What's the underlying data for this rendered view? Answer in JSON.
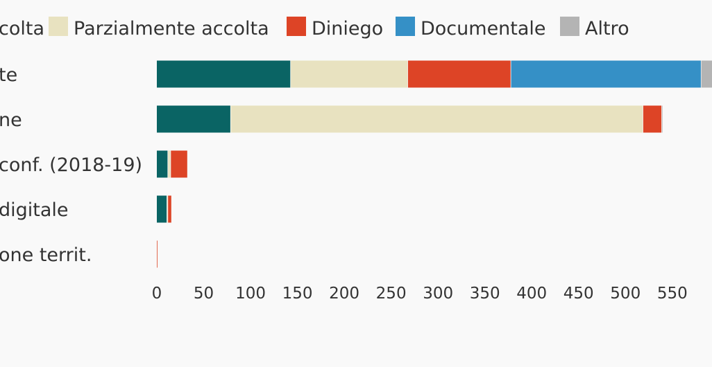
{
  "chart_data": {
    "type": "bar",
    "orientation": "horizontal",
    "stacked": true,
    "categories": [
      "te",
      "ne",
      "conf. (2018-19)",
      "digitale",
      "one territ."
    ],
    "series": [
      {
        "name": "colta",
        "color": "#0a6464",
        "values": [
          143,
          79,
          12,
          11,
          0
        ]
      },
      {
        "name": "Parzialmente accolta",
        "color": "#e8e2c0",
        "values": [
          125,
          440,
          3,
          1,
          0
        ]
      },
      {
        "name": "Diniego",
        "color": "#dd4426",
        "values": [
          110,
          20,
          18,
          4,
          1
        ]
      },
      {
        "name": "Documentale",
        "color": "#3590c6",
        "values": [
          203,
          0,
          0,
          0,
          0
        ]
      },
      {
        "name": "Altro",
        "color": "#b4b4b4",
        "values": [
          16,
          1,
          0,
          0,
          0
        ]
      }
    ],
    "x_ticks": [
      "0",
      "50",
      "100",
      "150",
      "200",
      "250",
      "300",
      "350",
      "400",
      "450",
      "500",
      "550",
      "6"
    ],
    "xlim": [
      0,
      597
    ],
    "grid": false,
    "legend_position": "top"
  }
}
